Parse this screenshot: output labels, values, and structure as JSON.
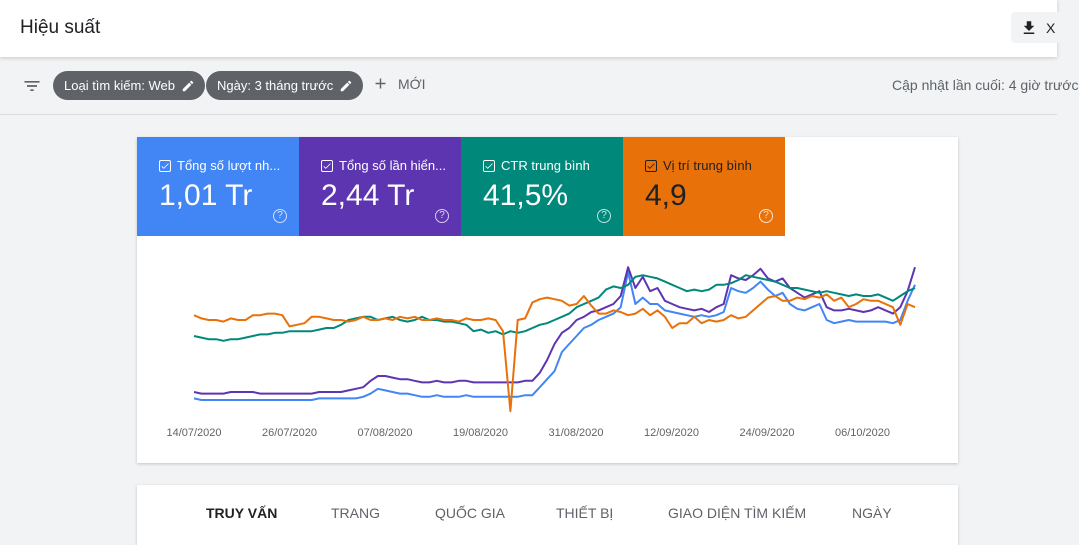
{
  "header": {
    "title": "Hiệu suất",
    "export_label": "X"
  },
  "filters": {
    "chips": [
      {
        "label": "Loại tìm kiếm: Web"
      },
      {
        "label": "Ngày: 3 tháng trước"
      }
    ],
    "new_label": "MỚI",
    "last_updated": "Cập nhật lần cuối: 4 giờ trước"
  },
  "metrics": [
    {
      "label": "Tổng số lượt nh...",
      "value": "1,01 Tr",
      "color": "#4285f4"
    },
    {
      "label": "Tổng số lần hiển...",
      "value": "2,44 Tr",
      "color": "#5e35b1"
    },
    {
      "label": "CTR trung bình",
      "value": "41,5%",
      "color": "#00897b"
    },
    {
      "label": "Vị trí trung bình",
      "value": "4,9",
      "color": "#e8710a"
    }
  ],
  "chart_data": {
    "type": "line",
    "x_tick_labels": [
      "14/07/2020",
      "26/07/2020",
      "07/08/2020",
      "19/08/2020",
      "31/08/2020",
      "12/09/2020",
      "24/09/2020",
      "06/10/2020"
    ],
    "y_axis_hidden": true,
    "grid": false,
    "series": [
      {
        "color": "#4285f4",
        "values": [
          0.11,
          0.1,
          0.1,
          0.1,
          0.1,
          0.1,
          0.1,
          0.1,
          0.1,
          0.1,
          0.1,
          0.1,
          0.1,
          0.1,
          0.1,
          0.1,
          0.1,
          0.11,
          0.11,
          0.11,
          0.11,
          0.11,
          0.11,
          0.12,
          0.14,
          0.17,
          0.16,
          0.15,
          0.14,
          0.14,
          0.13,
          0.12,
          0.12,
          0.13,
          0.12,
          0.12,
          0.12,
          0.13,
          0.12,
          0.12,
          0.12,
          0.12,
          0.12,
          0.12,
          0.12,
          0.13,
          0.13,
          0.18,
          0.23,
          0.28,
          0.4,
          0.45,
          0.5,
          0.55,
          0.57,
          0.6,
          0.62,
          0.64,
          0.68,
          0.9,
          0.7,
          0.74,
          0.7,
          0.7,
          0.66,
          0.65,
          0.64,
          0.63,
          0.62,
          0.63,
          0.62,
          0.63,
          0.65,
          0.8,
          0.78,
          0.77,
          0.8,
          0.84,
          0.79,
          0.75,
          0.77,
          0.7,
          0.67,
          0.66,
          0.68,
          0.7,
          0.6,
          0.58,
          0.59,
          0.6,
          0.59,
          0.59,
          0.59,
          0.59,
          0.59,
          0.58,
          0.6,
          0.72,
          0.82
        ]
      },
      {
        "color": "#5e35b1",
        "values": [
          0.15,
          0.14,
          0.14,
          0.14,
          0.14,
          0.15,
          0.15,
          0.15,
          0.15,
          0.14,
          0.14,
          0.14,
          0.14,
          0.14,
          0.14,
          0.14,
          0.14,
          0.15,
          0.15,
          0.15,
          0.15,
          0.16,
          0.17,
          0.18,
          0.22,
          0.25,
          0.25,
          0.24,
          0.23,
          0.23,
          0.22,
          0.21,
          0.21,
          0.22,
          0.21,
          0.21,
          0.22,
          0.22,
          0.21,
          0.21,
          0.21,
          0.21,
          0.21,
          0.21,
          0.21,
          0.22,
          0.22,
          0.27,
          0.35,
          0.45,
          0.52,
          0.55,
          0.6,
          0.62,
          0.65,
          0.66,
          0.68,
          0.7,
          0.75,
          0.93,
          0.8,
          0.87,
          0.78,
          0.8,
          0.72,
          0.7,
          0.68,
          0.67,
          0.66,
          0.67,
          0.65,
          0.68,
          0.7,
          0.88,
          0.86,
          0.85,
          0.88,
          0.92,
          0.86,
          0.84,
          0.86,
          0.8,
          0.77,
          0.74,
          0.76,
          0.78,
          0.68,
          0.66,
          0.66,
          0.67,
          0.66,
          0.65,
          0.66,
          0.68,
          0.66,
          0.64,
          0.68,
          0.78,
          0.93
        ]
      },
      {
        "color": "#00897b",
        "values": [
          0.5,
          0.49,
          0.48,
          0.48,
          0.47,
          0.48,
          0.48,
          0.49,
          0.5,
          0.51,
          0.51,
          0.52,
          0.52,
          0.53,
          0.53,
          0.53,
          0.53,
          0.54,
          0.55,
          0.55,
          0.57,
          0.6,
          0.61,
          0.62,
          0.62,
          0.6,
          0.61,
          0.62,
          0.6,
          0.59,
          0.6,
          0.62,
          0.6,
          0.6,
          0.59,
          0.59,
          0.58,
          0.57,
          0.53,
          0.54,
          0.52,
          0.53,
          0.51,
          0.53,
          0.52,
          0.53,
          0.55,
          0.57,
          0.58,
          0.6,
          0.62,
          0.64,
          0.68,
          0.7,
          0.72,
          0.74,
          0.79,
          0.81,
          0.8,
          0.82,
          0.87,
          0.88,
          0.87,
          0.86,
          0.84,
          0.82,
          0.8,
          0.78,
          0.79,
          0.78,
          0.79,
          0.82,
          0.82,
          0.83,
          0.85,
          0.88,
          0.87,
          0.86,
          0.85,
          0.84,
          0.82,
          0.8,
          0.8,
          0.79,
          0.78,
          0.77,
          0.78,
          0.77,
          0.76,
          0.75,
          0.76,
          0.75,
          0.75,
          0.76,
          0.74,
          0.72,
          0.75,
          0.78,
          0.8
        ]
      },
      {
        "color": "#e8710a",
        "values": [
          0.63,
          0.61,
          0.6,
          0.6,
          0.59,
          0.61,
          0.6,
          0.6,
          0.63,
          0.63,
          0.64,
          0.64,
          0.63,
          0.56,
          0.57,
          0.58,
          0.62,
          0.62,
          0.61,
          0.6,
          0.6,
          0.59,
          0.6,
          0.62,
          0.6,
          0.6,
          0.61,
          0.6,
          0.62,
          0.61,
          0.62,
          0.6,
          0.6,
          0.61,
          0.6,
          0.6,
          0.59,
          0.61,
          0.6,
          0.6,
          0.61,
          0.6,
          0.53,
          0.03,
          0.6,
          0.61,
          0.71,
          0.73,
          0.74,
          0.73,
          0.72,
          0.69,
          0.7,
          0.75,
          0.69,
          0.64,
          0.64,
          0.66,
          0.65,
          0.63,
          0.64,
          0.67,
          0.63,
          0.66,
          0.62,
          0.55,
          0.58,
          0.58,
          0.62,
          0.58,
          0.6,
          0.59,
          0.6,
          0.63,
          0.61,
          0.62,
          0.66,
          0.7,
          0.74,
          0.75,
          0.72,
          0.72,
          0.74,
          0.73,
          0.75,
          0.74,
          0.76,
          0.72,
          0.74,
          0.68,
          0.7,
          0.73,
          0.72,
          0.72,
          0.7,
          0.68,
          0.57,
          0.7,
          0.68
        ]
      }
    ]
  },
  "tabs": [
    {
      "label": "Truy vấn",
      "active": true
    },
    {
      "label": "Trang",
      "active": false
    },
    {
      "label": "Quốc gia",
      "active": false
    },
    {
      "label": "Thiết bị",
      "active": false
    },
    {
      "label": "Giao diện tìm kiếm",
      "active": false
    },
    {
      "label": "Ngày",
      "active": false
    }
  ]
}
